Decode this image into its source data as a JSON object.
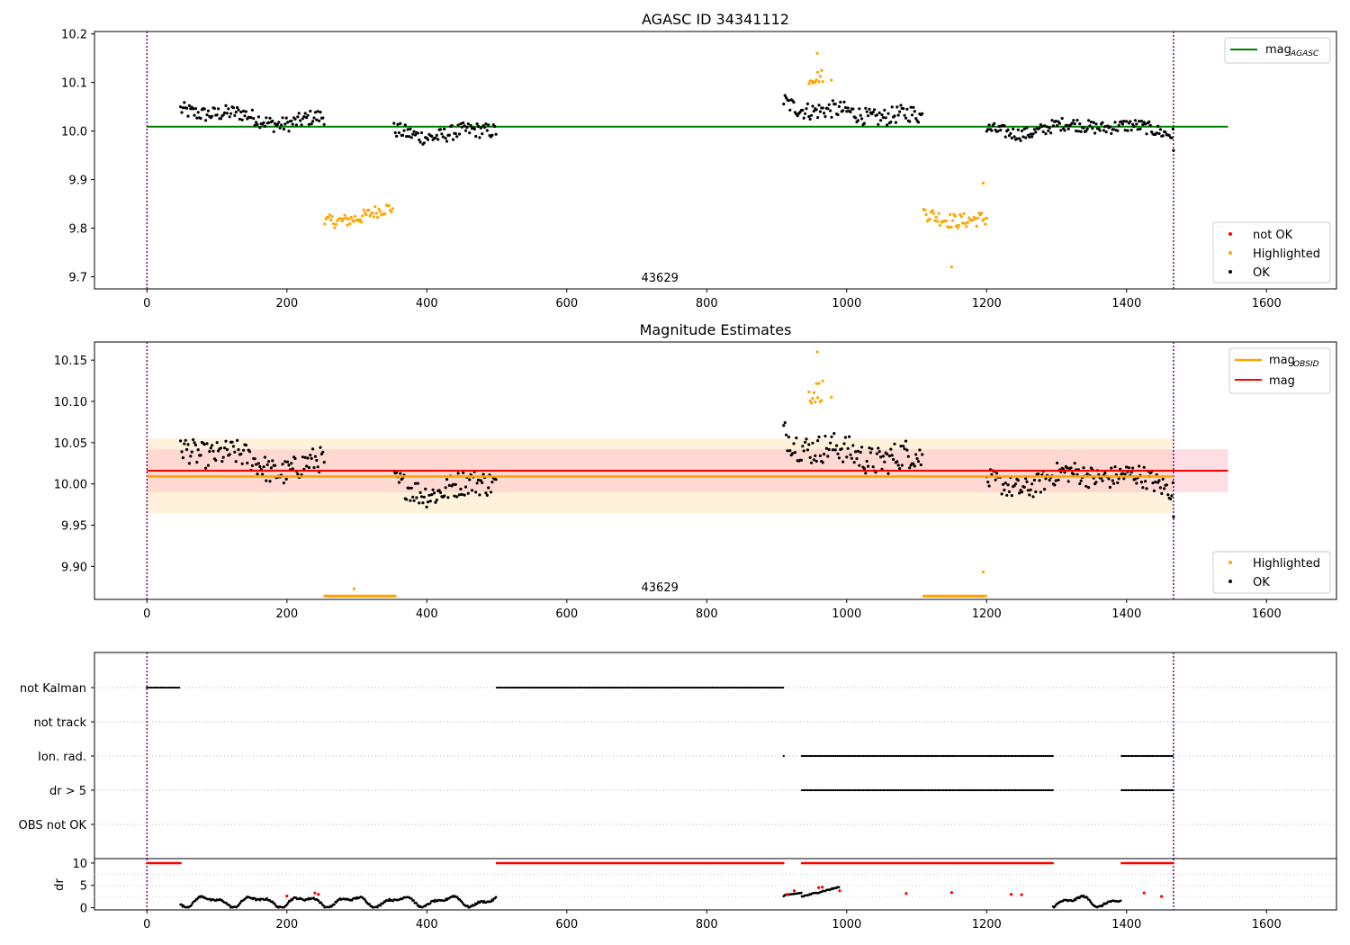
{
  "colors": {
    "ok": "#000000",
    "highlighted": "#ffa500",
    "not_ok": "#ff0000",
    "agasc_line": "#008000",
    "obsid_line": "#ffa500",
    "mag_line": "#ff0000",
    "mag_band": "#ffc0c8",
    "obsid_band": "#ffe4b5",
    "obs_marker": "#800080"
  },
  "chart_data": [
    {
      "type": "scatter",
      "title": "AGASC ID 34341112",
      "xlim": [
        -75,
        1700
      ],
      "ylim": [
        9.675,
        10.205
      ],
      "xticks": [
        0,
        200,
        400,
        600,
        800,
        1000,
        1200,
        1400,
        1600
      ],
      "yticks": [
        9.7,
        9.8,
        9.9,
        10.0,
        10.1,
        10.2
      ],
      "ytick_labels": [
        "9.7",
        "9.8",
        "9.9",
        "10.0",
        "10.1",
        "10.2"
      ],
      "obs_boundaries": [
        0,
        1467
      ],
      "obsid_label": {
        "text": "43629",
        "x": 733
      },
      "mag_agasc": {
        "value": 10.009,
        "x_range": [
          0,
          1545
        ],
        "label": "mag",
        "sub": "AGASC"
      },
      "legend": [
        "not OK",
        "Highlighted",
        "OK"
      ],
      "segments": [
        {
          "kind": "ok",
          "x": [
            48,
            255
          ],
          "base": 10.03,
          "amp": 0.035,
          "trend": -0.01
        },
        {
          "kind": "highlighted",
          "x": [
            254,
            352
          ],
          "base": 9.82,
          "amp": 0.03,
          "trend": 0.02
        },
        {
          "kind": "ok",
          "x": [
            353,
            500
          ],
          "base": 10.0,
          "amp": 0.035,
          "trend": 0.02
        },
        {
          "kind": "ok",
          "x": [
            910,
            1108
          ],
          "base": 10.04,
          "amp": 0.04,
          "trend": -0.05
        },
        {
          "kind": "highlighted",
          "x": [
            946,
            966
          ],
          "base": 10.12,
          "amp": 0.03,
          "trend": 0.0
        },
        {
          "kind": "highlighted",
          "x": [
            1110,
            1200
          ],
          "base": 9.82,
          "amp": 0.035,
          "trend": 0.0
        },
        {
          "kind": "ok",
          "x": [
            1200,
            1467
          ],
          "base": 10.005,
          "amp": 0.03,
          "trend": 0.0
        }
      ],
      "extra_points": [
        {
          "kind": "highlighted",
          "x": 1150,
          "y": 9.72
        },
        {
          "kind": "highlighted",
          "x": 1195,
          "y": 9.893
        },
        {
          "kind": "highlighted",
          "x": 958,
          "y": 10.16
        },
        {
          "kind": "highlighted",
          "x": 978,
          "y": 10.105
        },
        {
          "kind": "ok",
          "x": 1467,
          "y": 9.96
        }
      ]
    },
    {
      "type": "scatter",
      "title": "Magnitude Estimates",
      "xlim": [
        -75,
        1700
      ],
      "ylim": [
        9.86,
        10.172
      ],
      "xticks": [
        0,
        200,
        400,
        600,
        800,
        1000,
        1200,
        1400,
        1600
      ],
      "yticks": [
        9.9,
        9.95,
        10.0,
        10.05,
        10.1,
        10.15
      ],
      "ytick_labels": [
        "9.90",
        "9.95",
        "10.00",
        "10.05",
        "10.10",
        "10.15"
      ],
      "obs_boundaries": [
        0,
        1467
      ],
      "obsid_label": {
        "text": "43629",
        "x": 733
      },
      "mag_obsid": {
        "value": 10.009,
        "band": [
          9.964,
          10.055
        ],
        "x_range": [
          0,
          1467
        ],
        "label": "mag",
        "sub": "OBSID"
      },
      "mag": {
        "value": 10.016,
        "band": [
          9.99,
          10.042
        ],
        "x_range": [
          0,
          1545
        ],
        "label": "mag"
      },
      "legend": [
        "Highlighted",
        "OK"
      ],
      "segments": [
        {
          "kind": "ok",
          "x": [
            48,
            255
          ],
          "base": 10.03,
          "amp": 0.035,
          "trend": -0.01
        },
        {
          "kind": "floor",
          "x": [
            254,
            355
          ],
          "base": 9.864,
          "amp": 0.0,
          "trend": 0.0
        },
        {
          "kind": "ok",
          "x": [
            353,
            500
          ],
          "base": 10.0,
          "amp": 0.035,
          "trend": 0.02
        },
        {
          "kind": "ok",
          "x": [
            910,
            1108
          ],
          "base": 10.04,
          "amp": 0.04,
          "trend": -0.05
        },
        {
          "kind": "highlighted",
          "x": [
            946,
            966
          ],
          "base": 10.12,
          "amp": 0.03,
          "trend": 0.0
        },
        {
          "kind": "floor",
          "x": [
            1110,
            1200
          ],
          "base": 9.864,
          "amp": 0.0,
          "trend": 0.0
        },
        {
          "kind": "ok",
          "x": [
            1200,
            1467
          ],
          "base": 10.005,
          "amp": 0.03,
          "trend": 0.0
        }
      ],
      "extra_points": [
        {
          "kind": "highlighted",
          "x": 296,
          "y": 9.873
        },
        {
          "kind": "highlighted",
          "x": 1195,
          "y": 9.893
        },
        {
          "kind": "highlighted",
          "x": 958,
          "y": 10.16
        },
        {
          "kind": "highlighted",
          "x": 978,
          "y": 10.105
        },
        {
          "kind": "ok",
          "x": 1467,
          "y": 9.96
        }
      ]
    },
    {
      "type": "scatter",
      "title": "",
      "xlim": [
        -75,
        1700
      ],
      "categories": [
        "not Kalman",
        "not track",
        "Ion. rad.",
        "dr > 5",
        "OBS not OK"
      ],
      "obs_boundaries": [
        0,
        1467
      ],
      "flags": [
        {
          "category": "not Kalman",
          "ranges": [
            [
              0,
              48
            ],
            [
              500,
              910
            ]
          ]
        },
        {
          "category": "not track",
          "ranges": []
        },
        {
          "category": "Ion. rad.",
          "ranges": [
            [
              910,
              911
            ],
            [
              936,
              1295
            ],
            [
              1393,
              1467
            ]
          ]
        },
        {
          "category": "dr > 5",
          "ranges": [
            [
              936,
              1295
            ],
            [
              1393,
              1467
            ]
          ]
        },
        {
          "category": "OBS not OK",
          "ranges": []
        }
      ]
    },
    {
      "type": "scatter",
      "ylabel": "dr",
      "xlim": [
        -75,
        1700
      ],
      "ylim": [
        -0.5,
        11
      ],
      "yticks": [
        0,
        5,
        10
      ],
      "ytick_labels": [
        "0",
        "5",
        "10"
      ],
      "xticks": [
        0,
        200,
        400,
        600,
        800,
        1000,
        1200,
        1400,
        1600
      ],
      "obs_boundaries": [
        0,
        1467
      ],
      "saturated": {
        "value": 10,
        "ranges": [
          [
            0,
            48
          ],
          [
            500,
            910
          ],
          [
            936,
            1295
          ],
          [
            1393,
            1467
          ]
        ]
      },
      "ok_ranges": [
        [
          48,
          500
        ],
        [
          910,
          1467
        ]
      ],
      "red_points": [
        {
          "x": 240,
          "y": 3.3
        },
        {
          "x": 245,
          "y": 3.0
        },
        {
          "x": 200,
          "y": 2.6
        },
        {
          "x": 915,
          "y": 3.0
        },
        {
          "x": 925,
          "y": 3.8
        },
        {
          "x": 960,
          "y": 4.5
        },
        {
          "x": 965,
          "y": 4.6
        },
        {
          "x": 990,
          "y": 3.8
        },
        {
          "x": 1085,
          "y": 3.2
        },
        {
          "x": 1150,
          "y": 3.4
        },
        {
          "x": 1235,
          "y": 3.0
        },
        {
          "x": 1250,
          "y": 2.9
        },
        {
          "x": 1425,
          "y": 3.3
        },
        {
          "x": 1450,
          "y": 2.5
        }
      ]
    }
  ]
}
